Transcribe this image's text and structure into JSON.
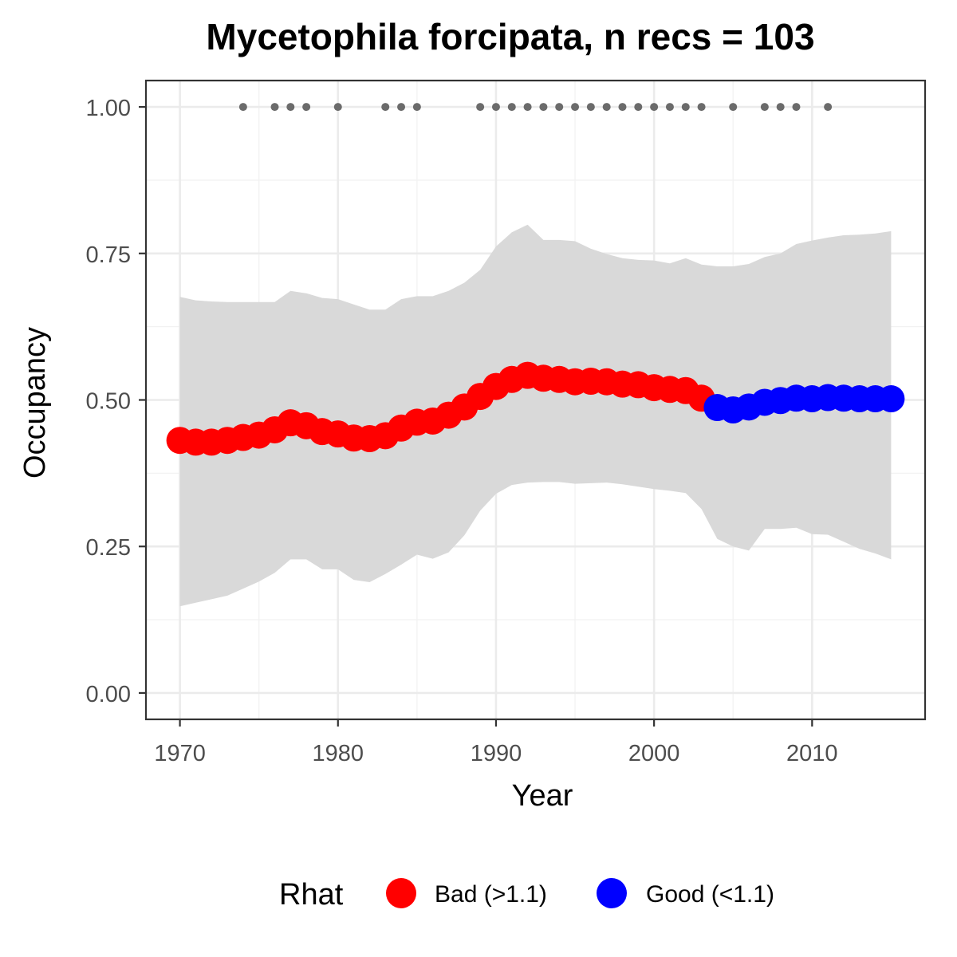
{
  "chart_data": {
    "type": "line",
    "title": "Mycetophila forcipata, n recs = 103",
    "xlabel": "Year",
    "ylabel": "Occupancy",
    "xlim": [
      1967.85,
      2017.15
    ],
    "ylim": [
      -0.045,
      1.045
    ],
    "x_ticks": [
      {
        "value": 1970,
        "label": "1970"
      },
      {
        "value": 1980,
        "label": "1980"
      },
      {
        "value": 1990,
        "label": "1990"
      },
      {
        "value": 2000,
        "label": "2000"
      },
      {
        "value": 2010,
        "label": "2010"
      }
    ],
    "y_ticks": [
      {
        "value": 0,
        "label": "0.00"
      },
      {
        "value": 0.25,
        "label": "0.25"
      },
      {
        "value": 0.5,
        "label": "0.50"
      },
      {
        "value": 0.75,
        "label": "0.75"
      },
      {
        "value": 1,
        "label": "1.00"
      }
    ],
    "grid": true,
    "legend": {
      "title": "Rhat",
      "position": "bottom",
      "entries": [
        {
          "label": "Bad (>1.1)",
          "color": "#ff0000"
        },
        {
          "label": "Good (<1.1)",
          "color": "#0000ff"
        }
      ]
    },
    "series": [
      {
        "name": "occupancy",
        "x": [
          1970,
          1971,
          1972,
          1973,
          1974,
          1975,
          1976,
          1977,
          1978,
          1979,
          1980,
          1981,
          1982,
          1983,
          1984,
          1985,
          1986,
          1987,
          1988,
          1989,
          1990,
          1991,
          1992,
          1993,
          1994,
          1995,
          1996,
          1997,
          1998,
          1999,
          2000,
          2001,
          2002,
          2003,
          2004,
          2005,
          2006,
          2007,
          2008,
          2009,
          2010,
          2011,
          2012,
          2013,
          2014,
          2015
        ],
        "y": [
          0.431,
          0.428,
          0.428,
          0.431,
          0.436,
          0.44,
          0.449,
          0.461,
          0.456,
          0.446,
          0.442,
          0.435,
          0.434,
          0.439,
          0.452,
          0.462,
          0.464,
          0.474,
          0.488,
          0.506,
          0.523,
          0.535,
          0.542,
          0.537,
          0.535,
          0.531,
          0.532,
          0.531,
          0.527,
          0.526,
          0.521,
          0.518,
          0.516,
          0.503,
          0.487,
          0.483,
          0.488,
          0.496,
          0.499,
          0.503,
          0.502,
          0.504,
          0.503,
          0.502,
          0.502,
          0.502
        ],
        "rhat_class": [
          "Bad (>1.1)",
          "Bad (>1.1)",
          "Bad (>1.1)",
          "Bad (>1.1)",
          "Bad (>1.1)",
          "Bad (>1.1)",
          "Bad (>1.1)",
          "Bad (>1.1)",
          "Bad (>1.1)",
          "Bad (>1.1)",
          "Bad (>1.1)",
          "Bad (>1.1)",
          "Bad (>1.1)",
          "Bad (>1.1)",
          "Bad (>1.1)",
          "Bad (>1.1)",
          "Bad (>1.1)",
          "Bad (>1.1)",
          "Bad (>1.1)",
          "Bad (>1.1)",
          "Bad (>1.1)",
          "Bad (>1.1)",
          "Bad (>1.1)",
          "Bad (>1.1)",
          "Bad (>1.1)",
          "Bad (>1.1)",
          "Bad (>1.1)",
          "Bad (>1.1)",
          "Bad (>1.1)",
          "Bad (>1.1)",
          "Bad (>1.1)",
          "Bad (>1.1)",
          "Bad (>1.1)",
          "Bad (>1.1)",
          "Good (<1.1)",
          "Good (<1.1)",
          "Good (<1.1)",
          "Good (<1.1)",
          "Good (<1.1)",
          "Good (<1.1)",
          "Good (<1.1)",
          "Good (<1.1)",
          "Good (<1.1)",
          "Good (<1.1)",
          "Good (<1.1)",
          "Good (<1.1)"
        ]
      }
    ],
    "ribbon": {
      "color": "#d9d9d9",
      "x": [
        1970,
        1971,
        1972,
        1973,
        1974,
        1975,
        1976,
        1977,
        1978,
        1979,
        1980,
        1981,
        1982,
        1983,
        1984,
        1985,
        1986,
        1987,
        1988,
        1989,
        1990,
        1991,
        1992,
        1993,
        1994,
        1995,
        1996,
        1997,
        1998,
        1999,
        2000,
        2001,
        2002,
        2003,
        2004,
        2005,
        2006,
        2007,
        2008,
        2009,
        2010,
        2011,
        2012,
        2013,
        2014,
        2015
      ],
      "lower": [
        0.148,
        0.154,
        0.16,
        0.166,
        0.178,
        0.19,
        0.205,
        0.228,
        0.228,
        0.211,
        0.211,
        0.193,
        0.189,
        0.203,
        0.219,
        0.236,
        0.229,
        0.24,
        0.269,
        0.311,
        0.34,
        0.355,
        0.359,
        0.36,
        0.36,
        0.357,
        0.358,
        0.359,
        0.356,
        0.352,
        0.348,
        0.345,
        0.341,
        0.314,
        0.263,
        0.25,
        0.243,
        0.28,
        0.28,
        0.282,
        0.271,
        0.27,
        0.258,
        0.246,
        0.238,
        0.228
      ],
      "upper": [
        0.676,
        0.67,
        0.668,
        0.667,
        0.667,
        0.667,
        0.667,
        0.686,
        0.682,
        0.674,
        0.672,
        0.663,
        0.654,
        0.654,
        0.672,
        0.677,
        0.677,
        0.686,
        0.7,
        0.722,
        0.762,
        0.786,
        0.799,
        0.773,
        0.773,
        0.771,
        0.758,
        0.749,
        0.742,
        0.739,
        0.738,
        0.733,
        0.742,
        0.731,
        0.728,
        0.728,
        0.732,
        0.744,
        0.75,
        0.766,
        0.772,
        0.777,
        0.781,
        0.782,
        0.784,
        0.788
      ]
    },
    "records": {
      "color": "#6b6b6b",
      "y": 1.0,
      "x": [
        1974,
        1976,
        1977,
        1978,
        1980,
        1983,
        1984,
        1985,
        1989,
        1990,
        1991,
        1992,
        1993,
        1994,
        1995,
        1996,
        1997,
        1998,
        1999,
        2000,
        2001,
        2002,
        2003,
        2005,
        2007,
        2008,
        2009,
        2011
      ]
    }
  }
}
